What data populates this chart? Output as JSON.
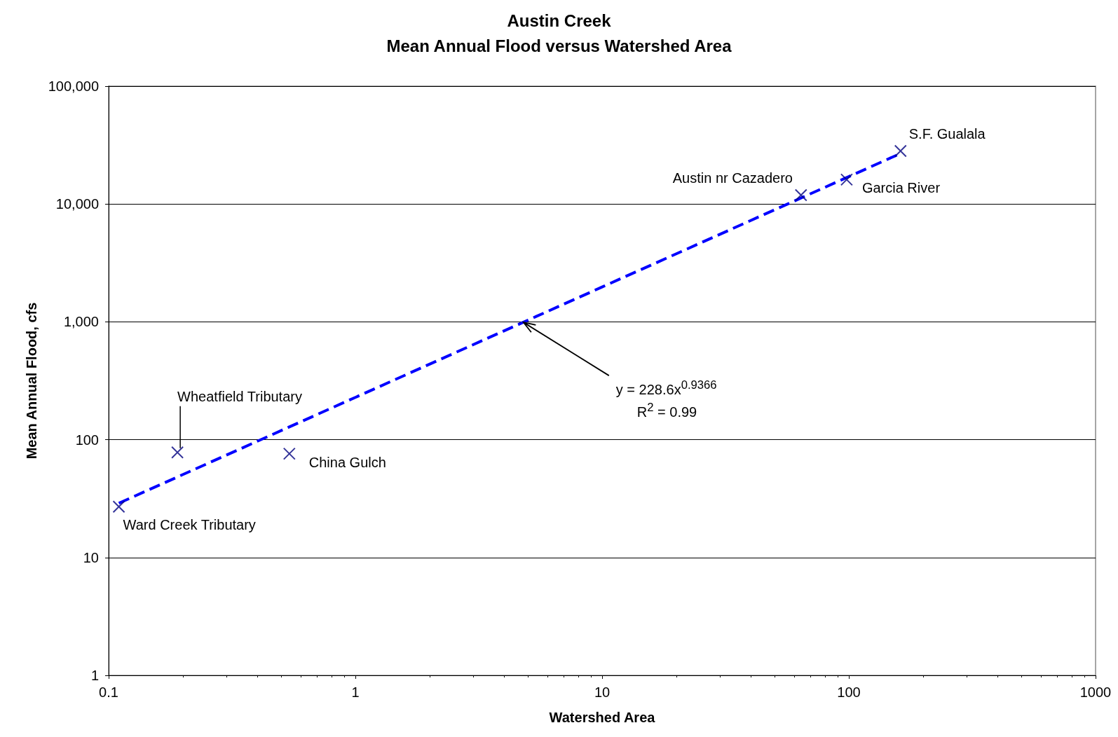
{
  "chart_data": {
    "type": "scatter",
    "title": "Austin Creek\nMean Annual Flood versus Watershed Area",
    "xlabel": "Watershed Area",
    "ylabel": "Mean Annual Flood, cfs",
    "x": [
      0.11,
      0.19,
      0.54,
      64,
      98,
      162
    ],
    "series": [
      {
        "type": "scatter",
        "color": "#000080",
        "marker": "cross",
        "values": [
          27,
          78,
          76,
          11900,
          16100,
          28200
        ]
      },
      {
        "type": "line",
        "color": "#0000ff",
        "line_style": "dashed",
        "marker": "none",
        "x": [
          0.11,
          1,
          10,
          162
        ],
        "values": [
          28.9,
          228.6,
          1976,
          26840
        ]
      }
    ],
    "annotations": [
      {
        "text": "Ward Creek Tributary",
        "x": 0.11,
        "y": 27
      },
      {
        "text": "Wheatfield Tributary",
        "x": 0.19,
        "y": 78
      },
      {
        "text": "China Gulch",
        "x": 0.54,
        "y": 76
      },
      {
        "text": "Austin nr Cazadero",
        "x": 64,
        "y": 11900
      },
      {
        "text": "Garcia River",
        "x": 98,
        "y": 16100
      },
      {
        "text": "S.F. Gualala",
        "x": 162,
        "y": 28200
      },
      {
        "text": "y = 228.6x$^{0.9366}$",
        "x": 4.8,
        "y": 990
      },
      "R$^{2}$ = 0.99"
    ],
    "log": "xy",
    "xlim": [
      0.1,
      1000
    ],
    "xticks": [
      0.1,
      1,
      10,
      100,
      1000
    ],
    "ylim": [
      1,
      100000
    ],
    "yticks": [
      1,
      10,
      100,
      {
        "value": 1000,
        "label": "1,000"
      },
      {
        "value": 10000,
        "label": "10,000"
      },
      {
        "value": 100000,
        "label": "100,000"
      }
    ],
    "grid": "y"
  }
}
